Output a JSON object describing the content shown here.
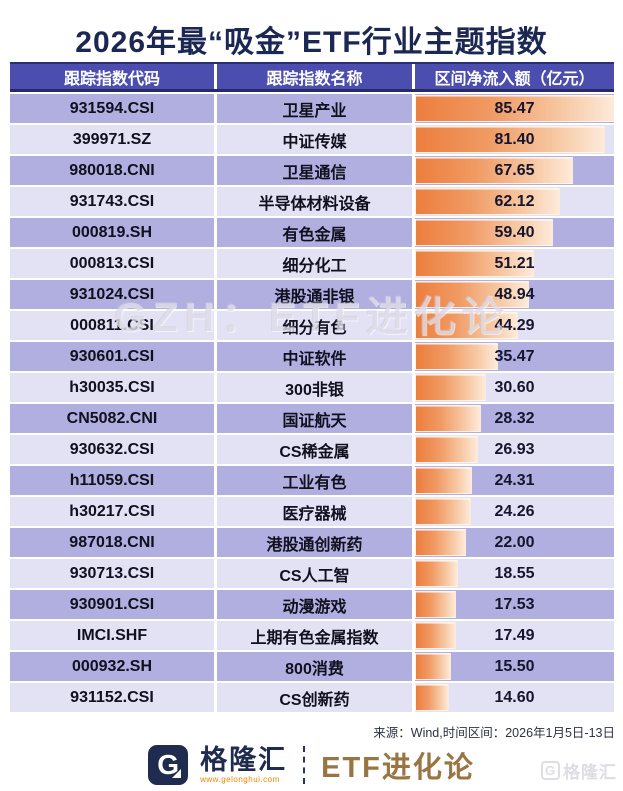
{
  "title": "2026年最“吸金”ETF行业主题指数",
  "table": {
    "headers": {
      "code": "跟踪指数代码",
      "name": "跟踪指数名称",
      "inflow": "区间净流入额（亿元）"
    },
    "max_value": 85.47,
    "rows": [
      {
        "code": "931594.CSI",
        "name": "卫星产业",
        "value": "85.47"
      },
      {
        "code": "399971.SZ",
        "name": "中证传媒",
        "value": "81.40"
      },
      {
        "code": "980018.CNI",
        "name": "卫星通信",
        "value": "67.65"
      },
      {
        "code": "931743.CSI",
        "name": "半导体材料设备",
        "value": "62.12"
      },
      {
        "code": "000819.SH",
        "name": "有色金属",
        "value": "59.40"
      },
      {
        "code": "000813.CSI",
        "name": "细分化工",
        "value": "51.21"
      },
      {
        "code": "931024.CSI",
        "name": "港股通非银",
        "value": "48.94"
      },
      {
        "code": "000811.CSI",
        "name": "细分有色",
        "value": "44.29"
      },
      {
        "code": "930601.CSI",
        "name": "中证软件",
        "value": "35.47"
      },
      {
        "code": "h30035.CSI",
        "name": "300非银",
        "value": "30.60"
      },
      {
        "code": "CN5082.CNI",
        "name": "国证航天",
        "value": "28.32"
      },
      {
        "code": "930632.CSI",
        "name": "CS稀金属",
        "value": "26.93"
      },
      {
        "code": "h11059.CSI",
        "name": "工业有色",
        "value": "24.31"
      },
      {
        "code": "h30217.CSI",
        "name": "医疗器械",
        "value": "24.26"
      },
      {
        "code": "987018.CNI",
        "name": "港股通创新药",
        "value": "22.00"
      },
      {
        "code": "930713.CSI",
        "name": "CS人工智",
        "value": "18.55"
      },
      {
        "code": "930901.CSI",
        "name": "动漫游戏",
        "value": "17.53"
      },
      {
        "code": "IMCI.SHF",
        "name": "上期有色金属指数",
        "value": "17.49"
      },
      {
        "code": "000932.SH",
        "name": "800消费",
        "value": "15.50"
      },
      {
        "code": "931152.CSI",
        "name": "CS创新药",
        "value": "14.60"
      }
    ]
  },
  "chart_data": {
    "type": "bar",
    "title": "2026年最“吸金”ETF行业主题指数",
    "categories": [
      "卫星产业",
      "中证传媒",
      "卫星通信",
      "半导体材料设备",
      "有色金属",
      "细分化工",
      "港股通非银",
      "细分有色",
      "中证软件",
      "300非银",
      "国证航天",
      "CS稀金属",
      "工业有色",
      "医疗器械",
      "港股通创新药",
      "CS人工智",
      "动漫游戏",
      "上期有色金属指数",
      "800消费",
      "CS创新药"
    ],
    "codes": [
      "931594.CSI",
      "399971.SZ",
      "980018.CNI",
      "931743.CSI",
      "000819.SH",
      "000813.CSI",
      "931024.CSI",
      "000811.CSI",
      "930601.CSI",
      "h30035.CSI",
      "CN5082.CNI",
      "930632.CSI",
      "h11059.CSI",
      "h30217.CSI",
      "987018.CNI",
      "930713.CSI",
      "930901.CSI",
      "IMCI.SHF",
      "000932.SH",
      "931152.CSI"
    ],
    "values": [
      85.47,
      81.4,
      67.65,
      62.12,
      59.4,
      51.21,
      48.94,
      44.29,
      35.47,
      30.6,
      28.32,
      26.93,
      24.31,
      24.26,
      22.0,
      18.55,
      17.53,
      17.49,
      15.5,
      14.6
    ],
    "xlabel": "区间净流入额（亿元）",
    "ylabel": "",
    "xlim": [
      0,
      85.47
    ],
    "orientation": "horizontal",
    "bar_color_gradient": [
      "#ec7e3e",
      "#fdead9"
    ]
  },
  "watermark": {
    "center": "GZH：ETF进化论",
    "corner": "格隆汇"
  },
  "source_note": "来源：Wind,时间区间：2026年1月5日-13日",
  "footer": {
    "brand_initial": "G",
    "brand_name": "格隆汇",
    "brand_url": "www.gelonghui.com",
    "column_name": "ETF进化论"
  },
  "colors": {
    "title_text": "#1c2754",
    "header_bg": "#4b4eae",
    "header_text": "#ffffff",
    "row_odd_bg": "#b0afdf",
    "row_even_bg": "#e3e2f4",
    "bar_start": "#ec7e3e",
    "bar_end": "#fdead9",
    "brand_navy": "#1f2c50",
    "brand_bronze": "#9a7544",
    "brand_orange": "#f08300"
  }
}
